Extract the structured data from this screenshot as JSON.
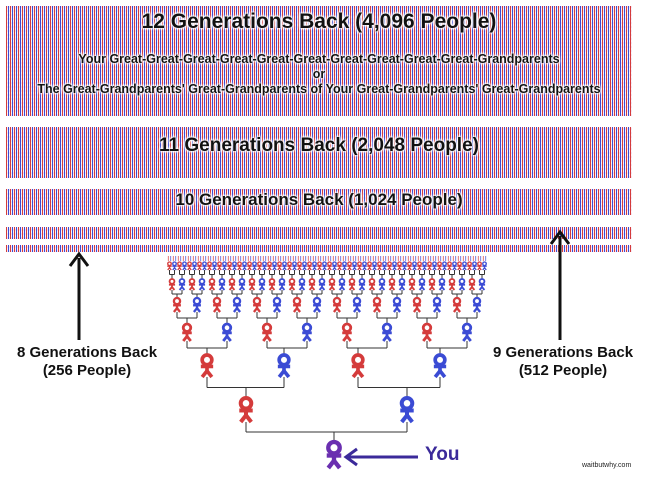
{
  "bands": {
    "gen12_title": "12 Generations Back (4,096 People)",
    "gen12_line1": "Your Great-Great-Great-Great-Great-Great-Great-Great-Great-Great-Grandparents",
    "gen12_line2": "or",
    "gen12_line3": "The Great-Grandparents' Great-Grandparents of Your Great-Grandparents' Great-Grandparents",
    "gen11_title": "11 Generations Back (2,048 People)",
    "gen10_title": "10 Generations Back (1,024 People)"
  },
  "labels": {
    "gen8_line1": "8 Generations Back",
    "gen8_line2": "(256 People)",
    "gen9_line1": "9 Generations Back",
    "gen9_line2": "(512 People)",
    "you": "You",
    "credit": "waitbutwhy.com"
  },
  "colors": {
    "male": "#3b4bd4",
    "female": "#d43b3b",
    "you": "#6a2fb0"
  }
}
